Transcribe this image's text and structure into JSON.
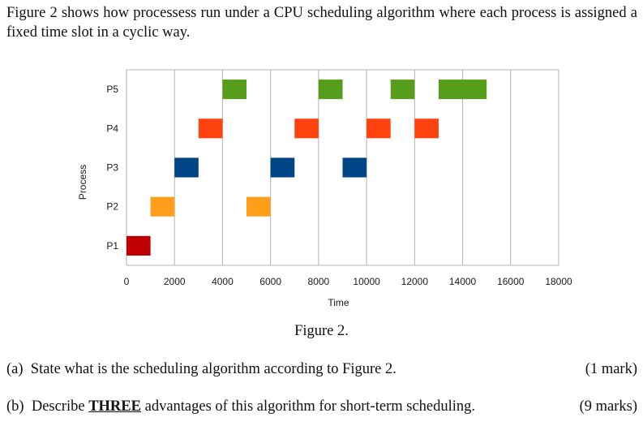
{
  "intro_text": "Figure 2 shows how processess run under a CPU scheduling algorithm where each process is assigned a fixed time slot in a cyclic way.",
  "chart_data": {
    "type": "gantt",
    "xlabel": "Time",
    "ylabel": "Process",
    "xlim": [
      0,
      18000
    ],
    "x_ticks": [
      0,
      2000,
      4000,
      6000,
      8000,
      10000,
      12000,
      14000,
      16000,
      18000
    ],
    "categories": [
      "P1",
      "P2",
      "P3",
      "P4",
      "P5"
    ],
    "grid": "vertical",
    "bars": [
      {
        "process": "P1",
        "start": 0,
        "end": 1000,
        "color": "#c00000"
      },
      {
        "process": "P2",
        "start": 1000,
        "end": 2000,
        "color": "#ff9e1b"
      },
      {
        "process": "P3",
        "start": 2000,
        "end": 3000,
        "color": "#004586"
      },
      {
        "process": "P4",
        "start": 3000,
        "end": 4000,
        "color": "#ff420e"
      },
      {
        "process": "P5",
        "start": 4000,
        "end": 5000,
        "color": "#579d1c"
      },
      {
        "process": "P2",
        "start": 5000,
        "end": 6000,
        "color": "#ff9e1b"
      },
      {
        "process": "P3",
        "start": 6000,
        "end": 7000,
        "color": "#004586"
      },
      {
        "process": "P4",
        "start": 7000,
        "end": 8000,
        "color": "#ff420e"
      },
      {
        "process": "P5",
        "start": 8000,
        "end": 9000,
        "color": "#579d1c"
      },
      {
        "process": "P3",
        "start": 9000,
        "end": 10000,
        "color": "#004586"
      },
      {
        "process": "P4",
        "start": 10000,
        "end": 11000,
        "color": "#ff420e"
      },
      {
        "process": "P5",
        "start": 11000,
        "end": 12000,
        "color": "#579d1c"
      },
      {
        "process": "P4",
        "start": 12000,
        "end": 13000,
        "color": "#ff420e"
      },
      {
        "process": "P5",
        "start": 13000,
        "end": 15000,
        "color": "#579d1c"
      }
    ]
  },
  "figure_caption": "Figure 2.",
  "questions": [
    {
      "label": "(a)",
      "text_before": "State what is the scheduling algorithm according to Figure 2.",
      "emphasis": "",
      "text_after": "",
      "marks": "(1 mark)"
    },
    {
      "label": "(b)",
      "text_before": "Describe ",
      "emphasis": "THREE",
      "text_after": " advantages of this algorithm for short-term scheduling.",
      "marks": "(9 marks)"
    }
  ]
}
